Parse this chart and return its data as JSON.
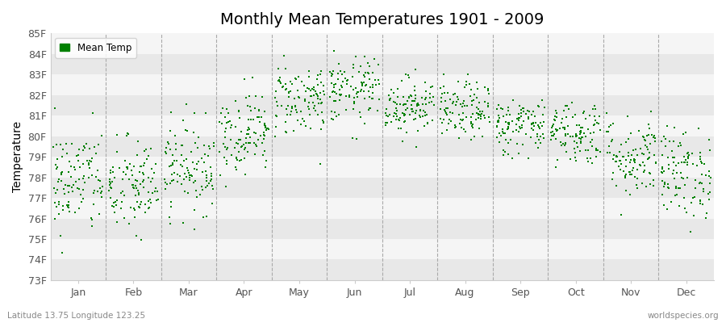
{
  "title": "Monthly Mean Temperatures 1901 - 2009",
  "ylabel": "Temperature",
  "xlabel_labels": [
    "Jan",
    "Feb",
    "Mar",
    "Apr",
    "May",
    "Jun",
    "Jul",
    "Aug",
    "Sep",
    "Oct",
    "Nov",
    "Dec"
  ],
  "ylim": [
    73,
    85
  ],
  "yticks": [
    73,
    74,
    75,
    76,
    77,
    78,
    79,
    80,
    81,
    82,
    83,
    84,
    85
  ],
  "ytick_labels": [
    "73F",
    "74F",
    "75F",
    "76F",
    "77F",
    "78F",
    "79F",
    "80F",
    "81F",
    "82F",
    "83F",
    "84F",
    "85F"
  ],
  "dot_color": "#008000",
  "bg_color": "#f5f5f5",
  "band_color_light": "#f5f5f5",
  "band_color_dark": "#e8e8e8",
  "vline_color": "#aaaaaa",
  "legend_label": "Mean Temp",
  "footer_left": "Latitude 13.75 Longitude 123.25",
  "footer_right": "worldspecies.org",
  "marker_size": 4,
  "years": 109,
  "start_year": 1901,
  "end_year": 2009,
  "monthly_means": [
    77.8,
    77.5,
    78.5,
    80.2,
    81.8,
    82.2,
    81.5,
    81.2,
    80.5,
    80.2,
    79.0,
    78.2
  ],
  "monthly_stds": [
    1.3,
    1.2,
    1.1,
    1.0,
    0.9,
    0.8,
    0.7,
    0.7,
    0.7,
    0.8,
    1.0,
    1.1
  ],
  "seed": 42,
  "fig_bg": "#ffffff",
  "title_fontsize": 14,
  "footer_fontsize": 7.5
}
